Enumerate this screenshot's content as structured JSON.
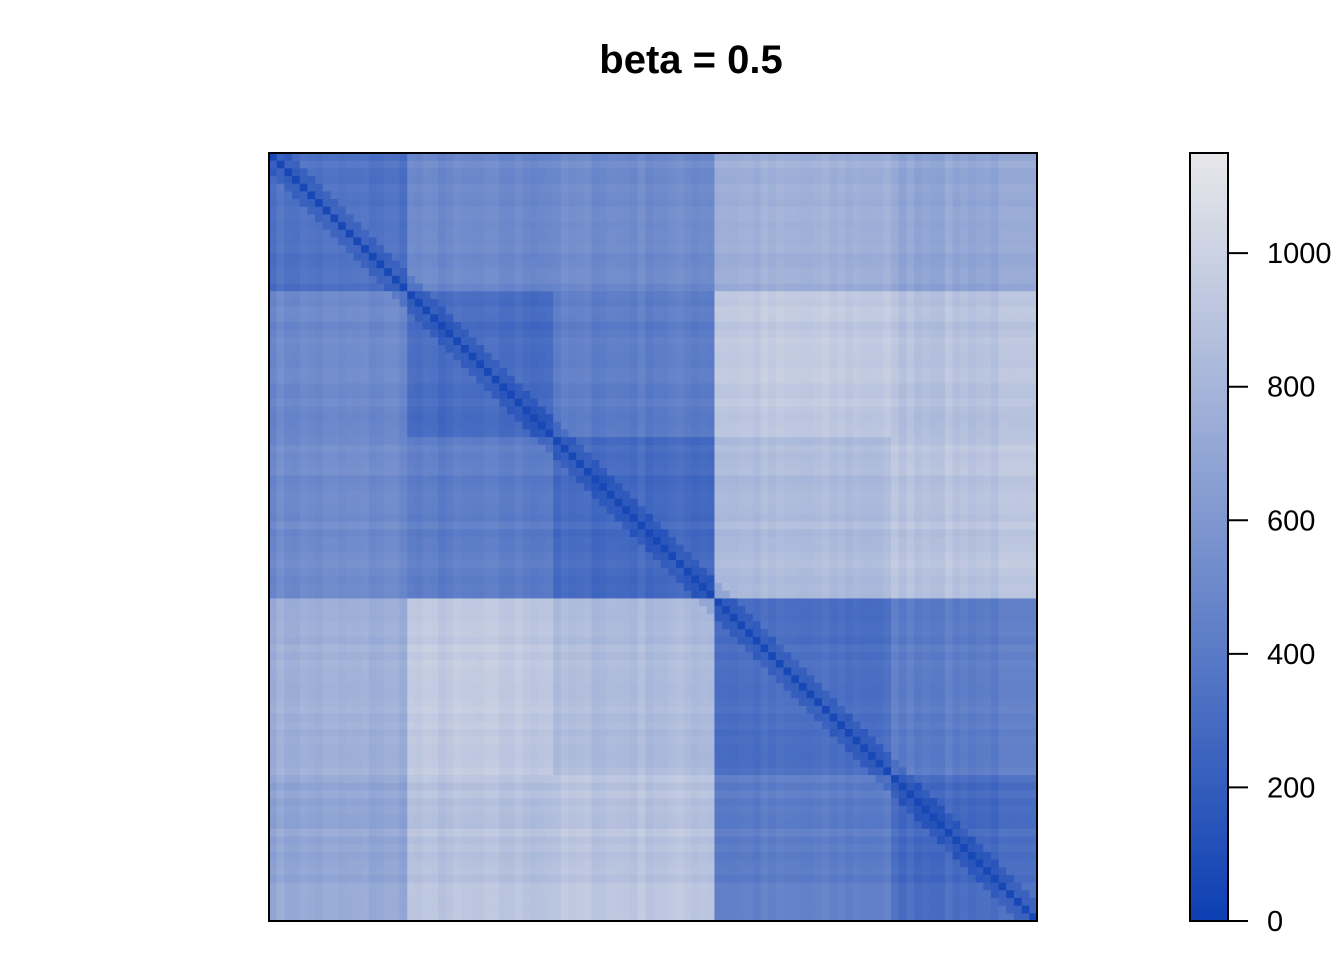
{
  "chart_data": {
    "type": "heatmap",
    "title": "beta = 0.5",
    "xlabel": "",
    "ylabel": "",
    "grid": false,
    "legend": "right",
    "colorscale": {
      "low_color": "#0d3fb3",
      "high_color": "#e8e8ea",
      "range": [
        0,
        1150
      ],
      "ticks": [
        0,
        200,
        400,
        600,
        800,
        1000
      ],
      "tick_labels": [
        "0",
        "200",
        "400",
        "600",
        "800",
        "1000"
      ]
    },
    "matrix_size": 100,
    "cluster_boundaries": [
      18,
      37,
      58,
      81,
      100
    ],
    "diagonal_value": 60,
    "block_values": [
      [
        350,
        500,
        520,
        760,
        700
      ],
      [
        500,
        300,
        420,
        930,
        880
      ],
      [
        520,
        420,
        300,
        840,
        900
      ],
      [
        760,
        930,
        840,
        320,
        420
      ],
      [
        700,
        880,
        900,
        420,
        300
      ]
    ]
  }
}
